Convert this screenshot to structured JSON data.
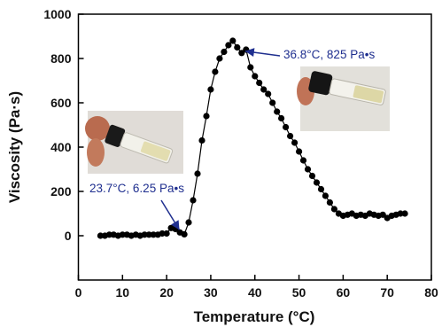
{
  "chart_data": {
    "type": "scatter",
    "xlabel": "Temperature (°C)",
    "ylabel": "Viscosity (Pa·s)",
    "xlim": [
      0,
      80
    ],
    "ylim": [
      -200,
      1000
    ],
    "xticks": [
      "0",
      "10",
      "20",
      "30",
      "40",
      "50",
      "60",
      "70",
      "80"
    ],
    "yticks": [
      "0",
      "200",
      "400",
      "600",
      "800",
      "1000"
    ],
    "grid": false,
    "line_connected": true,
    "marker_color": "#000000",
    "line_color": "#000000",
    "annotation_color": "#1f2f8f",
    "series": [
      {
        "x": [
          5,
          6,
          7,
          8,
          9,
          10,
          11,
          12,
          13,
          14,
          15,
          16,
          17,
          18,
          19,
          20,
          21,
          22,
          23,
          24,
          25,
          26,
          27,
          28,
          29,
          30,
          31,
          32,
          33,
          34,
          35,
          36,
          37,
          38,
          39,
          40,
          41,
          42,
          43,
          44,
          45,
          46,
          47,
          48,
          49,
          50,
          51,
          52,
          53,
          54,
          55,
          56,
          57,
          58,
          59,
          60,
          61,
          62,
          63,
          64,
          65,
          66,
          67,
          68,
          69,
          70,
          71,
          72,
          73,
          74
        ],
        "y": [
          0,
          0,
          5,
          5,
          0,
          5,
          5,
          0,
          5,
          0,
          5,
          5,
          5,
          5,
          10,
          10,
          35,
          30,
          15,
          6.25,
          60,
          160,
          280,
          430,
          540,
          660,
          740,
          800,
          830,
          860,
          880,
          850,
          825,
          840,
          760,
          720,
          690,
          660,
          640,
          600,
          560,
          530,
          490,
          450,
          420,
          380,
          340,
          300,
          270,
          240,
          210,
          180,
          150,
          120,
          100,
          90,
          95,
          100,
          90,
          95,
          90,
          100,
          95,
          90,
          95,
          80,
          90,
          95,
          100,
          100
        ]
      }
    ],
    "annotations": [
      {
        "label": "36.8°C, 825 Pa•s",
        "x": 36.8,
        "y": 825
      },
      {
        "label": "23.7°C, 6.25 Pa•s",
        "x": 23.7,
        "y": 6.25
      }
    ],
    "insets": [
      {
        "name": "sol-state-vial-photo",
        "liquid_color": "#e3ddb0"
      },
      {
        "name": "gel-state-vial-photo",
        "liquid_color": "#ddd7a6"
      }
    ]
  }
}
